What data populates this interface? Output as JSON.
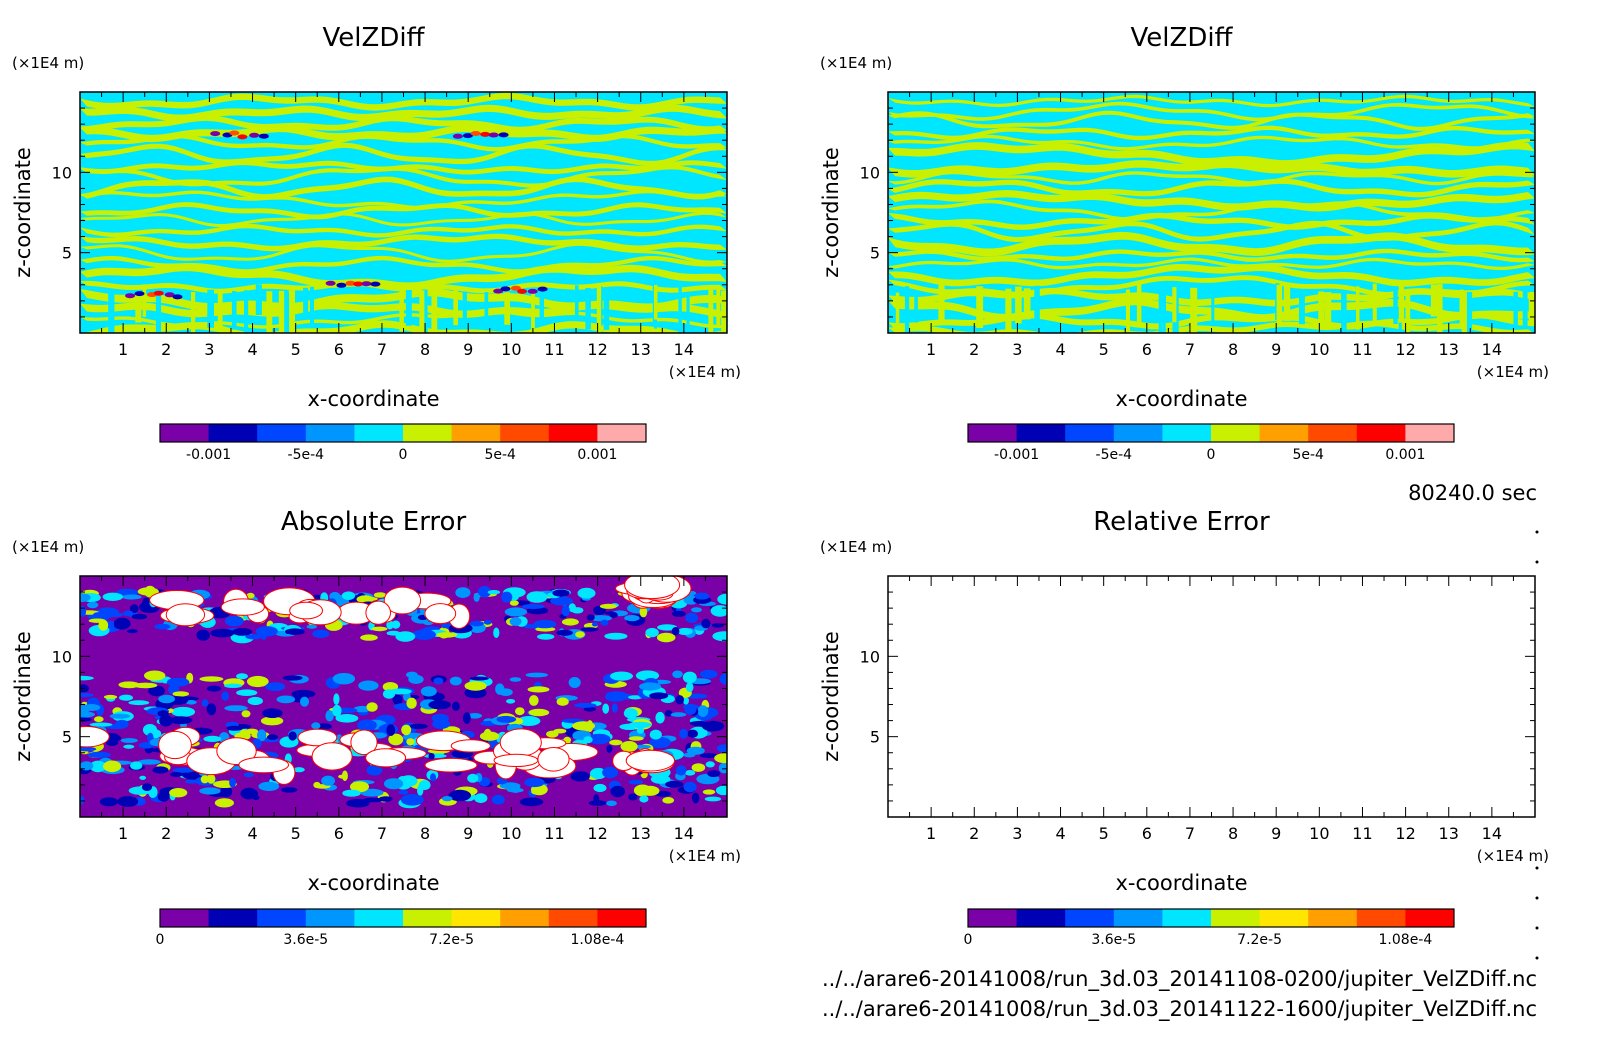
{
  "time_label": "80240.0 sec",
  "files": [
    "../../arare6-20141008/run_3d.03_20141108-0200/jupiter_VelZDiff.nc",
    "../../arare6-20141008/run_3d.03_20141122-1600/jupiter_VelZDiff.nc"
  ],
  "chart_data": [
    {
      "type": "heatmap",
      "title": "VelZDiff",
      "xlabel": "x-coordinate",
      "ylabel": "z-coordinate",
      "x_unit": "(×1E4 m)",
      "y_unit": "(×1E4 m)",
      "xlim": [
        0,
        15
      ],
      "ylim": [
        0,
        15
      ],
      "x_ticks": [
        "1",
        "2",
        "3",
        "4",
        "5",
        "6",
        "7",
        "8",
        "9",
        "10",
        "11",
        "12",
        "13",
        "14"
      ],
      "y_ticks": [
        "5",
        "10"
      ],
      "pattern": "stripes",
      "colorbar": {
        "colors": [
          "#7a00a8",
          "#0000b4",
          "#0046ff",
          "#0096ff",
          "#00e6ff",
          "#c8f000",
          "#ffa000",
          "#ff4a00",
          "#ff0000",
          "#ffaaaa"
        ],
        "tick_labels": [
          "-0.001",
          "-5e-4",
          "0",
          "5e-4",
          "0.001"
        ],
        "tick_values": [
          -0.001,
          -0.0005,
          0,
          0.0005,
          0.001
        ],
        "range": [
          -0.00125,
          0.00125
        ]
      }
    },
    {
      "type": "heatmap",
      "title": "VelZDiff",
      "xlabel": "x-coordinate",
      "ylabel": "z-coordinate",
      "x_unit": "(×1E4 m)",
      "y_unit": "(×1E4 m)",
      "xlim": [
        0,
        15
      ],
      "ylim": [
        0,
        15
      ],
      "x_ticks": [
        "1",
        "2",
        "3",
        "4",
        "5",
        "6",
        "7",
        "8",
        "9",
        "10",
        "11",
        "12",
        "13",
        "14"
      ],
      "y_ticks": [
        "5",
        "10"
      ],
      "pattern": "stripes",
      "colorbar": {
        "colors": [
          "#7a00a8",
          "#0000b4",
          "#0046ff",
          "#0096ff",
          "#00e6ff",
          "#c8f000",
          "#ffa000",
          "#ff4a00",
          "#ff0000",
          "#ffaaaa"
        ],
        "tick_labels": [
          "-0.001",
          "-5e-4",
          "0",
          "5e-4",
          "0.001"
        ],
        "tick_values": [
          -0.001,
          -0.0005,
          0,
          0.0005,
          0.001
        ],
        "range": [
          -0.00125,
          0.00125
        ]
      }
    },
    {
      "type": "heatmap",
      "title": "Absolute Error",
      "xlabel": "x-coordinate",
      "ylabel": "z-coordinate",
      "x_unit": "(×1E4 m)",
      "y_unit": "(×1E4 m)",
      "xlim": [
        0,
        15
      ],
      "ylim": [
        0,
        15
      ],
      "x_ticks": [
        "1",
        "2",
        "3",
        "4",
        "5",
        "6",
        "7",
        "8",
        "9",
        "10",
        "11",
        "12",
        "13",
        "14"
      ],
      "y_ticks": [
        "5",
        "10"
      ],
      "pattern": "bands",
      "colorbar": {
        "colors": [
          "#7a00a8",
          "#0000b4",
          "#0046ff",
          "#0096ff",
          "#00e6ff",
          "#c8f000",
          "#ffe600",
          "#ffa000",
          "#ff4a00",
          "#ff0000"
        ],
        "tick_labels": [
          "0",
          "3.6e-5",
          "7.2e-5",
          "1.08e-4"
        ],
        "tick_values": [
          0,
          3.6e-05,
          7.2e-05,
          0.000108
        ],
        "range": [
          0,
          0.00012
        ]
      }
    },
    {
      "type": "heatmap",
      "title": "Relative Error",
      "xlabel": "x-coordinate",
      "ylabel": "z-coordinate",
      "x_unit": "(×1E4 m)",
      "y_unit": "(×1E4 m)",
      "xlim": [
        0,
        15
      ],
      "ylim": [
        0,
        15
      ],
      "x_ticks": [
        "1",
        "2",
        "3",
        "4",
        "5",
        "6",
        "7",
        "8",
        "9",
        "10",
        "11",
        "12",
        "13",
        "14"
      ],
      "y_ticks": [
        "5",
        "10"
      ],
      "pattern": "empty",
      "colorbar": {
        "colors": [
          "#7a00a8",
          "#0000b4",
          "#0046ff",
          "#0096ff",
          "#00e6ff",
          "#c8f000",
          "#ffe600",
          "#ffa000",
          "#ff4a00",
          "#ff0000"
        ],
        "tick_labels": [
          "0",
          "3.6e-5",
          "7.2e-5",
          "1.08e-4"
        ],
        "tick_values": [
          0,
          3.6e-05,
          7.2e-05,
          0.000108
        ],
        "range": [
          0,
          0.00012
        ]
      }
    }
  ]
}
